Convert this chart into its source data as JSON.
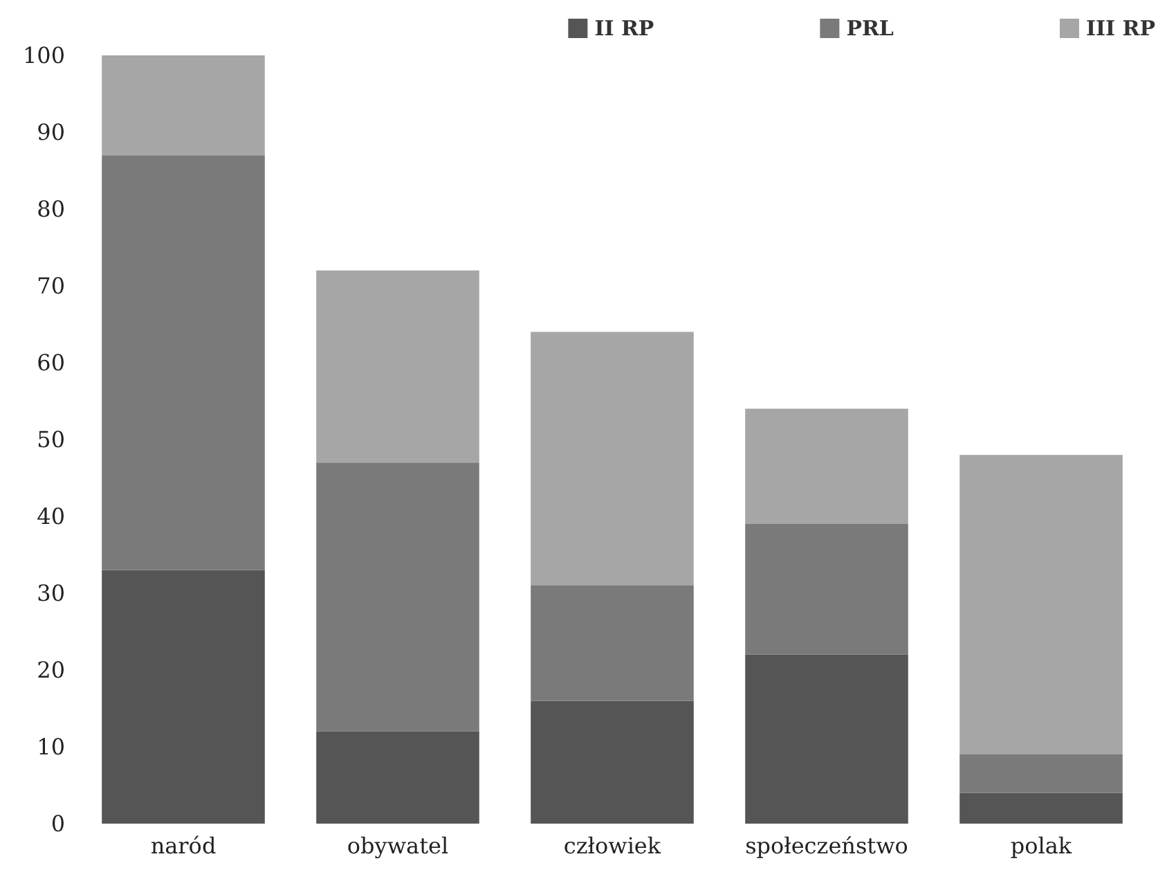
{
  "chart_data": {
    "type": "bar",
    "stacked": true,
    "categories": [
      "naród",
      "obywatel",
      "człowiek",
      "społeczeństwo",
      "polak"
    ],
    "series": [
      {
        "name": "II RP",
        "color": "#555555",
        "values": [
          33,
          12,
          16,
          22,
          4
        ]
      },
      {
        "name": "PRL",
        "color": "#7a7a7a",
        "values": [
          54,
          35,
          15,
          17,
          5
        ]
      },
      {
        "name": "III RP",
        "color": "#a6a6a6",
        "values": [
          13,
          25,
          33,
          15,
          39
        ]
      }
    ],
    "ylim": [
      0,
      100
    ],
    "yticks": [
      0,
      10,
      20,
      30,
      40,
      50,
      60,
      70,
      80,
      90,
      100
    ],
    "grid": false,
    "legend": "top right"
  }
}
